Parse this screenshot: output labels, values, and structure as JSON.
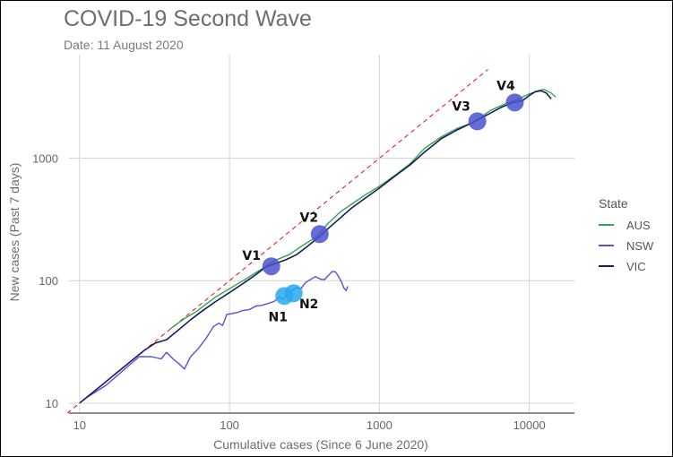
{
  "chart_data": {
    "type": "line",
    "title": "COVID-19 Second Wave",
    "subtitle": "Date: 11 August 2020",
    "xlabel": "Cumulative cases (Since 6 June 2020)",
    "ylabel": "New cases (Past 7 days)",
    "xscale": "log10",
    "yscale": "log10",
    "xlim": [
      8.5,
      20000
    ],
    "ylim": [
      8.3,
      7000
    ],
    "xticks": [
      10,
      100,
      1000,
      10000
    ],
    "xtick_labels": [
      "10",
      "100",
      "1000",
      "10000"
    ],
    "yticks": [
      10,
      100,
      1000
    ],
    "ytick_labels": [
      "10",
      "100",
      "1000"
    ],
    "grid": true,
    "legend_title": "State",
    "legend_position": "right",
    "reference_line": {
      "style": "dashed",
      "color": "#dd1111",
      "from": [
        8.3,
        8.3
      ],
      "to": [
        5300,
        5300
      ]
    },
    "series": [
      {
        "name": "AUS",
        "color": "#2fa84f",
        "points": [
          [
            40,
            40
          ],
          [
            50,
            49
          ],
          [
            60,
            56
          ],
          [
            80,
            73
          ],
          [
            100,
            86
          ],
          [
            130,
            104
          ],
          [
            170,
            128
          ],
          [
            200,
            146
          ],
          [
            250,
            163
          ],
          [
            300,
            190
          ],
          [
            380,
            228
          ],
          [
            450,
            290
          ],
          [
            550,
            365
          ],
          [
            650,
            420
          ],
          [
            800,
            500
          ],
          [
            1000,
            590
          ],
          [
            1300,
            740
          ],
          [
            1600,
            900
          ],
          [
            2000,
            1200
          ],
          [
            2600,
            1500
          ],
          [
            3300,
            1750
          ],
          [
            4200,
            1950
          ],
          [
            5500,
            2450
          ],
          [
            7000,
            2800
          ],
          [
            8500,
            3050
          ],
          [
            10000,
            3350
          ],
          [
            11500,
            3550
          ],
          [
            12500,
            3650
          ],
          [
            14000,
            3400
          ],
          [
            15000,
            3150
          ]
        ]
      },
      {
        "name": "NSW",
        "color": "#5a4fe0",
        "points": [
          [
            11,
            11
          ],
          [
            15,
            14
          ],
          [
            20,
            19
          ],
          [
            25,
            24
          ],
          [
            30,
            24
          ],
          [
            35,
            23
          ],
          [
            38,
            26
          ],
          [
            42,
            23
          ],
          [
            46,
            21
          ],
          [
            50,
            19
          ],
          [
            55,
            24
          ],
          [
            62,
            28
          ],
          [
            70,
            34
          ],
          [
            78,
            42
          ],
          [
            85,
            45
          ],
          [
            90,
            43
          ],
          [
            96,
            53
          ],
          [
            105,
            54
          ],
          [
            113,
            55
          ],
          [
            122,
            57
          ],
          [
            135,
            58
          ],
          [
            150,
            62
          ],
          [
            165,
            63
          ],
          [
            180,
            65
          ],
          [
            200,
            68
          ],
          [
            215,
            74
          ],
          [
            225,
            70
          ],
          [
            240,
            75
          ],
          [
            260,
            82
          ],
          [
            280,
            88
          ],
          [
            300,
            86
          ],
          [
            320,
            96
          ],
          [
            345,
            102
          ],
          [
            375,
            108
          ],
          [
            405,
            103
          ],
          [
            430,
            102
          ],
          [
            455,
            110
          ],
          [
            485,
            119
          ],
          [
            510,
            118
          ],
          [
            530,
            110
          ],
          [
            560,
            97
          ],
          [
            580,
            87
          ],
          [
            600,
            83
          ],
          [
            615,
            90
          ]
        ]
      },
      {
        "name": "VIC",
        "color": "#1a1a5e",
        "points": [
          [
            10,
            10
          ],
          [
            14,
            14
          ],
          [
            18,
            18
          ],
          [
            22,
            22
          ],
          [
            27,
            27
          ],
          [
            32,
            31
          ],
          [
            38,
            33
          ],
          [
            45,
            39
          ],
          [
            55,
            48
          ],
          [
            65,
            56
          ],
          [
            80,
            67
          ],
          [
            100,
            80
          ],
          [
            125,
            96
          ],
          [
            150,
            112
          ],
          [
            175,
            130
          ],
          [
            200,
            137
          ],
          [
            240,
            149
          ],
          [
            280,
            163
          ],
          [
            330,
            190
          ],
          [
            390,
            225
          ],
          [
            460,
            270
          ],
          [
            540,
            320
          ],
          [
            650,
            390
          ],
          [
            800,
            470
          ],
          [
            1000,
            570
          ],
          [
            1300,
            730
          ],
          [
            1600,
            880
          ],
          [
            2000,
            1120
          ],
          [
            2600,
            1450
          ],
          [
            3300,
            1700
          ],
          [
            4200,
            1960
          ],
          [
            5200,
            2250
          ],
          [
            6500,
            2600
          ],
          [
            7800,
            2850
          ],
          [
            9000,
            2950
          ],
          [
            10000,
            3250
          ],
          [
            11000,
            3500
          ],
          [
            12000,
            3550
          ],
          [
            13000,
            3400
          ],
          [
            14000,
            3050
          ]
        ]
      }
    ],
    "annotations": [
      {
        "label": "V1",
        "x": 190,
        "y": 131,
        "color": "#4a52cf"
      },
      {
        "label": "V2",
        "x": 400,
        "y": 240,
        "color": "#4a52cf"
      },
      {
        "label": "V3",
        "x": 4500,
        "y": 2000,
        "color": "#4a52cf"
      },
      {
        "label": "V4",
        "x": 8000,
        "y": 2850,
        "color": "#4a52cf"
      },
      {
        "label": "N1",
        "x": 232,
        "y": 75,
        "color": "#29a8ef"
      },
      {
        "label": "N2",
        "x": 268,
        "y": 79,
        "color": "#29a8ef"
      }
    ]
  }
}
